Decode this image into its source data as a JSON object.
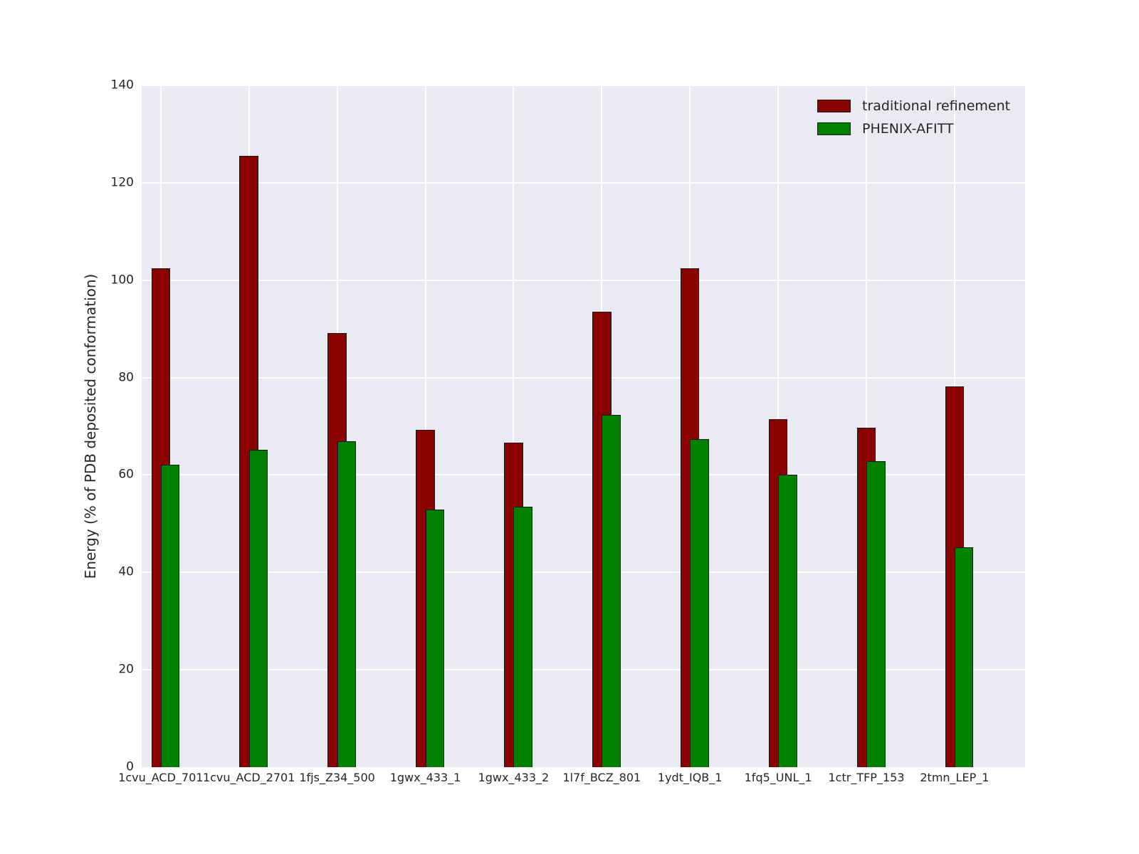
{
  "figure": {
    "background_color": "#ffffff",
    "plot_background_color": "#eaeaf2",
    "grid_color": "#ffffff",
    "text_color": "#262626",
    "bar_edge_color": "#1a1a1a"
  },
  "chart_data": {
    "type": "bar",
    "title": "",
    "xlabel": "",
    "ylabel": "Energy (% of PDB deposited conformation)",
    "ylim": [
      0,
      140
    ],
    "yticks": [
      0,
      20,
      40,
      60,
      80,
      100,
      120,
      140
    ],
    "grid": "on",
    "legend_position": "upper right",
    "bar_style": "overlapping, second series drawn on top offset right by half bar width",
    "categories": [
      "1cvu_ACD_701",
      "1cvu_ACD_2701",
      "1fjs_Z34_500",
      "1gwx_433_1",
      "1gwx_433_2",
      "1l7f_BCZ_801",
      "1ydt_IQB_1",
      "1fq5_UNL_1",
      "1ctr_TFP_153",
      "2tmn_LEP_1"
    ],
    "series": [
      {
        "name": "traditional refinement",
        "color": "#8b0000",
        "values": [
          102.5,
          125.5,
          89.2,
          69.3,
          66.6,
          93.6,
          102.5,
          71.5,
          69.7,
          78.2
        ]
      },
      {
        "name": "PHENIX-AFITT",
        "color": "#008000",
        "values": [
          62.1,
          65.2,
          67.0,
          52.9,
          53.5,
          72.3,
          67.3,
          60.1,
          62.9,
          45.1
        ]
      }
    ]
  }
}
